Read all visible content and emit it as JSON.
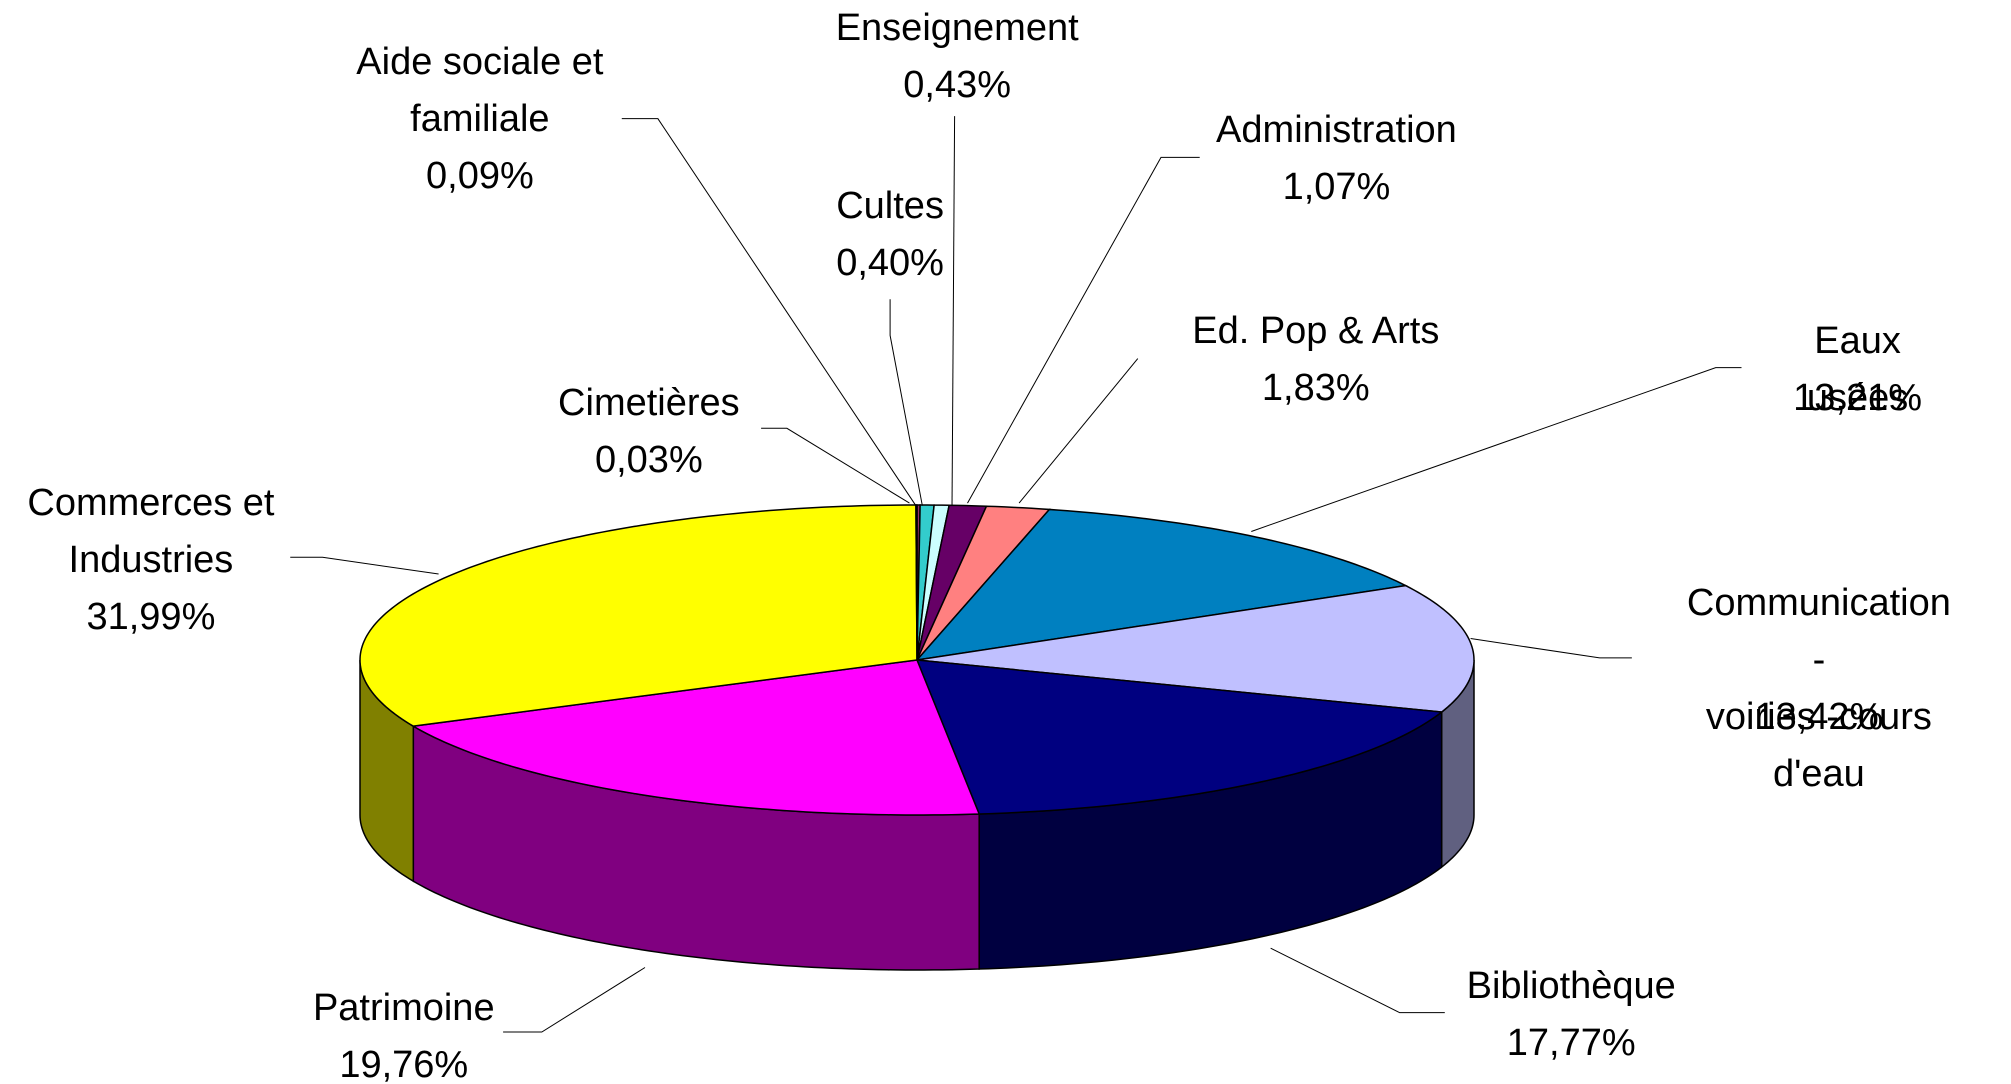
{
  "chart_data": {
    "type": "pie3d",
    "categories": [
      "Aide sociale et\nfamiliale",
      "Cultes",
      "Enseignement",
      "Administration",
      "Ed. Pop & Arts",
      "Eaux usées",
      "Communication -\nvoiries -cours d'eau",
      "Bibliothèque",
      "Patrimoine",
      "Commerces et\nIndustries",
      "Cimetières"
    ],
    "values": [
      0.09,
      0.4,
      0.43,
      1.07,
      1.83,
      13.21,
      13.42,
      17.77,
      19.76,
      31.99,
      0.03
    ],
    "value_labels": [
      "0,09%",
      "0,40%",
      "0,43%",
      "1,07%",
      "1,83%",
      "13,21%",
      "13,42%",
      "17,77%",
      "19,76%",
      "31,99%",
      "0,03%"
    ],
    "colors": [
      "#993366",
      "#33cccc",
      "#ccffff",
      "#660066",
      "#ff8080",
      "#0080c0",
      "#c0c0ff",
      "#000080",
      "#ff00ff",
      "#ffff00",
      "#00ffff"
    ]
  }
}
